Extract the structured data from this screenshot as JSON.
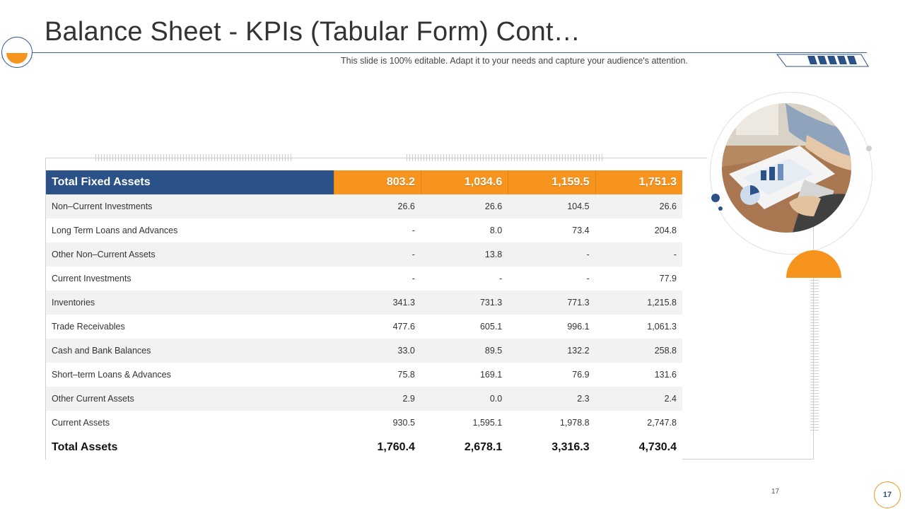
{
  "header": {
    "title": "Balance Sheet - KPIs (Tabular Form) Cont…",
    "subtitle": "This slide is 100% editable. Adapt it to your needs and capture your audience's attention."
  },
  "table": {
    "header_row": {
      "label": "Total Fixed Assets",
      "values": [
        "803.2",
        "1,034.6",
        "1,159.5",
        "1,751.3"
      ]
    },
    "rows": [
      {
        "label": "Non–Current Investments",
        "values": [
          "26.6",
          "26.6",
          "104.5",
          "26.6"
        ]
      },
      {
        "label": "Long Term Loans and Advances",
        "values": [
          "-",
          "8.0",
          "73.4",
          "204.8"
        ]
      },
      {
        "label": "Other Non–Current Assets",
        "values": [
          "-",
          "13.8",
          "-",
          "-"
        ]
      },
      {
        "label": "Current Investments",
        "values": [
          "-",
          "-",
          "-",
          "77.9"
        ]
      },
      {
        "label": "Inventories",
        "values": [
          "341.3",
          "731.3",
          "771.3",
          "1,215.8"
        ]
      },
      {
        "label": "Trade Receivables",
        "values": [
          "477.6",
          "605.1",
          "996.1",
          "1,061.3"
        ]
      },
      {
        "label": "Cash and Bank Balances",
        "values": [
          "33.0",
          "89.5",
          "132.2",
          "258.8"
        ]
      },
      {
        "label": "Short–term Loans & Advances",
        "values": [
          "75.8",
          "169.1",
          "76.9",
          "131.6"
        ]
      },
      {
        "label": "Other Current Assets",
        "values": [
          "2.9",
          "0.0",
          "2.3",
          "2.4"
        ]
      },
      {
        "label": "Current Assets",
        "values": [
          "930.5",
          "1,595.1",
          "1,978.8",
          "2,747.8"
        ]
      }
    ],
    "total_row": {
      "label": "Total Assets",
      "values": [
        "1,760.4",
        "2,678.1",
        "3,316.3",
        "4,730.4"
      ]
    }
  },
  "footer": {
    "page_number_small": "17",
    "page_number": "17"
  },
  "colors": {
    "brand_blue": "#2b5288",
    "accent_orange": "#f7941d"
  }
}
